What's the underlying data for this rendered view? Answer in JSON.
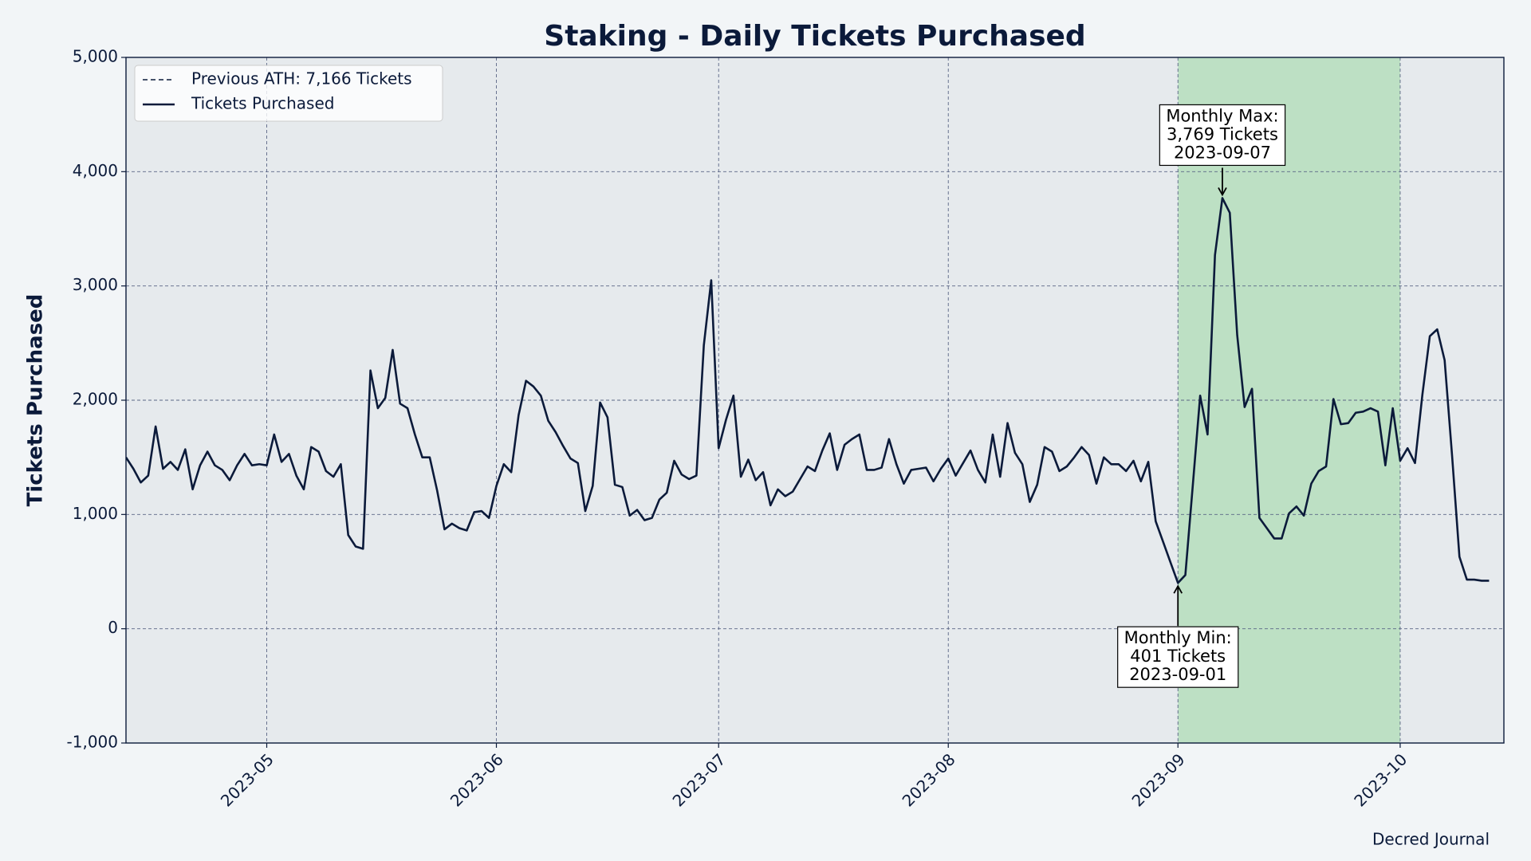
{
  "chart_data": {
    "type": "line",
    "title": "Staking - Daily Tickets Purchased",
    "y_label": "Tickets Purchased",
    "credit": "Decred Journal",
    "grid": true,
    "legend": "upper left",
    "xlim": [
      "2023-04-12",
      "2023-10-15"
    ],
    "xticks": [
      {
        "value": "2023-05-01",
        "label": "2023-05"
      },
      {
        "value": "2023-06-01",
        "label": "2023-06"
      },
      {
        "value": "2023-07-01",
        "label": "2023-07"
      },
      {
        "value": "2023-08-01",
        "label": "2023-08"
      },
      {
        "value": "2023-09-01",
        "label": "2023-09"
      },
      {
        "value": "2023-10-01",
        "label": "2023-10"
      }
    ],
    "ylim": [
      -1000,
      5000
    ],
    "yticks": [
      {
        "value": -1000,
        "label": "-1,000"
      },
      0,
      {
        "value": 1000,
        "label": "1,000"
      },
      {
        "value": 2000,
        "label": "2,000"
      },
      {
        "value": 3000,
        "label": "3,000"
      },
      {
        "value": 4000,
        "label": "4,000"
      },
      {
        "value": 5000,
        "label": "5,000"
      }
    ],
    "highlight": {
      "start": "2023-09-01",
      "end": "2023-10-01",
      "color": "#bde0c4"
    },
    "reference_lines": [
      {
        "name": "Previous ATH: 7,166 Tickets",
        "value": 7166,
        "color": "#0b1a3a",
        "style": "dashed"
      }
    ],
    "x": [
      "2023-04-12",
      "2023-04-13",
      "2023-04-14",
      "2023-04-15",
      "2023-04-16",
      "2023-04-17",
      "2023-04-18",
      "2023-04-19",
      "2023-04-20",
      "2023-04-21",
      "2023-04-22",
      "2023-04-23",
      "2023-04-24",
      "2023-04-25",
      "2023-04-26",
      "2023-04-27",
      "2023-04-28",
      "2023-04-29",
      "2023-04-30",
      "2023-05-01",
      "2023-05-02",
      "2023-05-03",
      "2023-05-04",
      "2023-05-05",
      "2023-05-06",
      "2023-05-07",
      "2023-05-08",
      "2023-05-09",
      "2023-05-10",
      "2023-05-11",
      "2023-05-12",
      "2023-05-13",
      "2023-05-14",
      "2023-05-15",
      "2023-05-16",
      "2023-05-17",
      "2023-05-18",
      "2023-05-19",
      "2023-05-20",
      "2023-05-21",
      "2023-05-22",
      "2023-05-23",
      "2023-05-24",
      "2023-05-25",
      "2023-05-26",
      "2023-05-27",
      "2023-05-28",
      "2023-05-29",
      "2023-05-30",
      "2023-05-31",
      "2023-06-01",
      "2023-06-02",
      "2023-06-03",
      "2023-06-04",
      "2023-06-05",
      "2023-06-06",
      "2023-06-07",
      "2023-06-08",
      "2023-06-09",
      "2023-06-10",
      "2023-06-11",
      "2023-06-12",
      "2023-06-13",
      "2023-06-14",
      "2023-06-15",
      "2023-06-16",
      "2023-06-17",
      "2023-06-18",
      "2023-06-19",
      "2023-06-20",
      "2023-06-21",
      "2023-06-22",
      "2023-06-23",
      "2023-06-24",
      "2023-06-25",
      "2023-06-26",
      "2023-06-27",
      "2023-06-28",
      "2023-06-29",
      "2023-06-30",
      "2023-07-01",
      "2023-07-02",
      "2023-07-03",
      "2023-07-04",
      "2023-07-05",
      "2023-07-06",
      "2023-07-07",
      "2023-07-08",
      "2023-07-09",
      "2023-07-10",
      "2023-07-11",
      "2023-07-12",
      "2023-07-13",
      "2023-07-14",
      "2023-07-15",
      "2023-07-16",
      "2023-07-17",
      "2023-07-18",
      "2023-07-19",
      "2023-07-20",
      "2023-07-21",
      "2023-07-22",
      "2023-07-23",
      "2023-07-24",
      "2023-07-25",
      "2023-07-26",
      "2023-07-27",
      "2023-07-28",
      "2023-07-29",
      "2023-07-30",
      "2023-07-31",
      "2023-08-01",
      "2023-08-02",
      "2023-08-03",
      "2023-08-04",
      "2023-08-05",
      "2023-08-06",
      "2023-08-07",
      "2023-08-08",
      "2023-08-09",
      "2023-08-10",
      "2023-08-11",
      "2023-08-12",
      "2023-08-13",
      "2023-08-14",
      "2023-08-15",
      "2023-08-16",
      "2023-08-17",
      "2023-08-18",
      "2023-08-19",
      "2023-08-20",
      "2023-08-21",
      "2023-08-22",
      "2023-08-23",
      "2023-08-24",
      "2023-08-25",
      "2023-08-26",
      "2023-08-27",
      "2023-08-28",
      "2023-08-29",
      "2023-08-30",
      "2023-08-31",
      "2023-09-01",
      "2023-09-02",
      "2023-09-03",
      "2023-09-04",
      "2023-09-05",
      "2023-09-06",
      "2023-09-07",
      "2023-09-08",
      "2023-09-09",
      "2023-09-10",
      "2023-09-11",
      "2023-09-12",
      "2023-09-13",
      "2023-09-14",
      "2023-09-15",
      "2023-09-16",
      "2023-09-17",
      "2023-09-18",
      "2023-09-19",
      "2023-09-20",
      "2023-09-21",
      "2023-09-22",
      "2023-09-23",
      "2023-09-24",
      "2023-09-25",
      "2023-09-26",
      "2023-09-27",
      "2023-09-28",
      "2023-09-29",
      "2023-09-30",
      "2023-10-01",
      "2023-10-02",
      "2023-10-03",
      "2023-10-04",
      "2023-10-05",
      "2023-10-06",
      "2023-10-07",
      "2023-10-08",
      "2023-10-09",
      "2023-10-10",
      "2023-10-11",
      "2023-10-12",
      "2023-10-13"
    ],
    "series": [
      {
        "name": "Tickets Purchased",
        "color": "#0b1a3a",
        "values": [
          1500,
          1400,
          1280,
          1340,
          1770,
          1400,
          1460,
          1390,
          1570,
          1220,
          1430,
          1550,
          1430,
          1390,
          1300,
          1430,
          1530,
          1430,
          1440,
          1430,
          1700,
          1460,
          1530,
          1340,
          1220,
          1590,
          1550,
          1380,
          1330,
          1440,
          820,
          720,
          700,
          2260,
          1930,
          2020,
          2440,
          1970,
          1930,
          1700,
          1500,
          1500,
          1210,
          870,
          920,
          880,
          860,
          1020,
          1030,
          970,
          1250,
          1440,
          1370,
          1870,
          2170,
          2120,
          2040,
          1820,
          1720,
          1600,
          1490,
          1450,
          1030,
          1250,
          1980,
          1850,
          1260,
          1240,
          990,
          1040,
          950,
          970,
          1130,
          1190,
          1470,
          1350,
          1310,
          1340,
          2480,
          3050,
          1580,
          1830,
          2040,
          1330,
          1480,
          1300,
          1370,
          1080,
          1220,
          1160,
          1200,
          1310,
          1420,
          1380,
          1560,
          1710,
          1390,
          1610,
          1660,
          1700,
          1390,
          1390,
          1410,
          1660,
          1440,
          1270,
          1390,
          1400,
          1410,
          1290,
          1400,
          1490,
          1340,
          1450,
          1560,
          1390,
          1280,
          1700,
          1330,
          1800,
          1540,
          1440,
          1110,
          1260,
          1590,
          1550,
          1380,
          1420,
          1500,
          1590,
          1520,
          1270,
          1500,
          1440,
          1440,
          1380,
          1470,
          1290,
          1460,
          940,
          760,
          580,
          401,
          470,
          1250,
          2040,
          1700,
          3270,
          3769,
          3640,
          2570,
          1940,
          2100,
          970,
          880,
          790,
          790,
          1010,
          1070,
          990,
          1270,
          1380,
          1420,
          2010,
          1790,
          1800,
          1890,
          1900,
          1930,
          1900,
          1430,
          1930,
          1470,
          1580,
          1450,
          2050,
          2560,
          2620,
          2350,
          1520,
          630,
          430,
          430,
          420,
          420
        ]
      }
    ],
    "annotations": [
      {
        "text": [
          "Monthly Max:",
          "3,769 Tickets",
          "2023-09-07"
        ],
        "x": "2023-09-07",
        "value": 3769
      },
      {
        "text": [
          "Monthly Min:",
          "401 Tickets",
          "2023-09-01"
        ],
        "x": "2023-09-01",
        "value": 401
      }
    ]
  }
}
